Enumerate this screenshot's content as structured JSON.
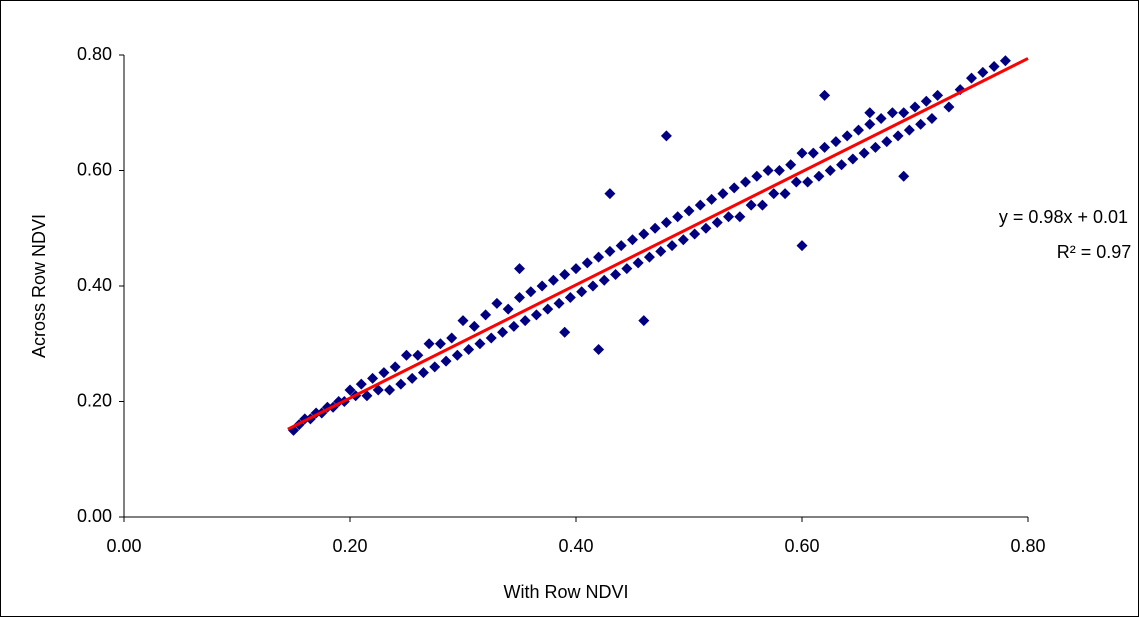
{
  "chart_data": {
    "type": "scatter",
    "x_label": "With Row NDVI",
    "y_label": "Across Row NDVI",
    "xlim": [
      0,
      0.8
    ],
    "ylim": [
      0,
      0.8
    ],
    "xticks": [
      {
        "value": 0,
        "label": "0.00"
      },
      {
        "value": 0.2,
        "label": "0.20"
      },
      {
        "value": 0.4,
        "label": "0.40"
      },
      {
        "value": 0.6,
        "label": "0.60"
      },
      {
        "value": 0.8,
        "label": "0.80"
      }
    ],
    "yticks": [
      {
        "value": 0,
        "label": "0.00"
      },
      {
        "value": 0.2,
        "label": "0.20"
      },
      {
        "value": 0.4,
        "label": "0.40"
      },
      {
        "value": 0.6,
        "label": "0.60"
      },
      {
        "value": 0.8,
        "label": "0.80"
      }
    ],
    "grid": false,
    "series": [
      {
        "color": "#000080",
        "x": [
          0.15,
          0.155,
          0.16,
          0.165,
          0.17,
          0.175,
          0.18,
          0.185,
          0.19,
          0.195,
          0.2,
          0.205,
          0.21,
          0.215,
          0.22,
          0.225,
          0.23,
          0.235,
          0.24,
          0.245,
          0.25,
          0.255,
          0.26,
          0.265,
          0.27,
          0.275,
          0.28,
          0.285,
          0.29,
          0.295,
          0.3,
          0.305,
          0.31,
          0.315,
          0.32,
          0.325,
          0.33,
          0.335,
          0.34,
          0.345,
          0.35,
          0.355,
          0.36,
          0.365,
          0.37,
          0.375,
          0.38,
          0.385,
          0.39,
          0.395,
          0.4,
          0.405,
          0.41,
          0.415,
          0.42,
          0.425,
          0.43,
          0.435,
          0.44,
          0.445,
          0.45,
          0.455,
          0.46,
          0.465,
          0.47,
          0.475,
          0.48,
          0.485,
          0.49,
          0.495,
          0.5,
          0.505,
          0.51,
          0.515,
          0.52,
          0.525,
          0.53,
          0.535,
          0.54,
          0.545,
          0.55,
          0.555,
          0.56,
          0.565,
          0.57,
          0.575,
          0.58,
          0.585,
          0.59,
          0.595,
          0.6,
          0.605,
          0.61,
          0.615,
          0.62,
          0.625,
          0.63,
          0.635,
          0.64,
          0.645,
          0.65,
          0.655,
          0.66,
          0.665,
          0.67,
          0.675,
          0.68,
          0.685,
          0.69,
          0.695,
          0.7,
          0.705,
          0.71,
          0.715,
          0.72,
          0.73,
          0.74,
          0.75,
          0.76,
          0.77,
          0.78,
          0.42,
          0.46,
          0.48,
          0.62,
          0.69,
          0.43,
          0.39,
          0.35,
          0.6,
          0.66
        ],
        "values": [
          0.15,
          0.16,
          0.17,
          0.17,
          0.18,
          0.18,
          0.19,
          0.19,
          0.2,
          0.2,
          0.22,
          0.21,
          0.23,
          0.21,
          0.24,
          0.22,
          0.25,
          0.22,
          0.26,
          0.23,
          0.28,
          0.24,
          0.28,
          0.25,
          0.3,
          0.26,
          0.3,
          0.27,
          0.31,
          0.28,
          0.34,
          0.29,
          0.33,
          0.3,
          0.35,
          0.31,
          0.37,
          0.32,
          0.36,
          0.33,
          0.38,
          0.34,
          0.39,
          0.35,
          0.4,
          0.36,
          0.41,
          0.37,
          0.42,
          0.38,
          0.43,
          0.39,
          0.44,
          0.4,
          0.45,
          0.41,
          0.46,
          0.42,
          0.47,
          0.43,
          0.48,
          0.44,
          0.49,
          0.45,
          0.5,
          0.46,
          0.51,
          0.47,
          0.52,
          0.48,
          0.53,
          0.49,
          0.54,
          0.5,
          0.55,
          0.51,
          0.56,
          0.52,
          0.57,
          0.52,
          0.58,
          0.54,
          0.59,
          0.54,
          0.6,
          0.56,
          0.6,
          0.56,
          0.61,
          0.58,
          0.63,
          0.58,
          0.63,
          0.59,
          0.64,
          0.6,
          0.65,
          0.61,
          0.66,
          0.62,
          0.67,
          0.63,
          0.68,
          0.64,
          0.69,
          0.65,
          0.7,
          0.66,
          0.7,
          0.67,
          0.71,
          0.68,
          0.72,
          0.69,
          0.73,
          0.71,
          0.74,
          0.76,
          0.77,
          0.78,
          0.79,
          0.29,
          0.34,
          0.66,
          0.73,
          0.59,
          0.56,
          0.32,
          0.43,
          0.47,
          0.7
        ]
      }
    ],
    "trendline": {
      "color": "#ff0000",
      "x": [
        0.145,
        0.8
      ],
      "values": [
        0.152,
        0.794
      ]
    },
    "annotations": [
      "y = 0.98x + 0.01",
      "R² = 0.97"
    ]
  }
}
